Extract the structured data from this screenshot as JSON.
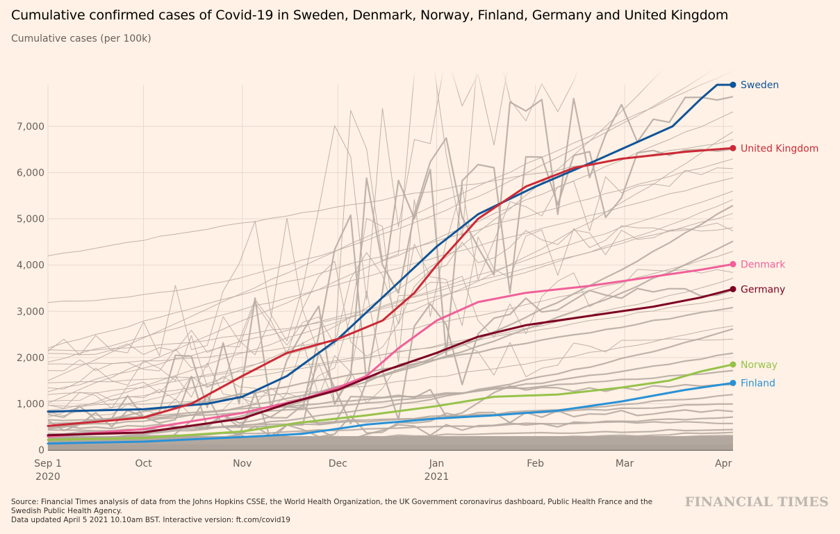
{
  "header": {
    "title": "Cumulative confirmed cases of Covid-19 in Sweden, Denmark, Norway, Finland, Germany and United Kingdom",
    "subtitle": "Cumulative cases (per 100k)"
  },
  "footer": {
    "source_line1": "Source: Financial Times analysis of data from the Johns Hopkins CSSE, the World Health Organization, the UK Government coronavirus dashboard, Public Health France and the",
    "source_line2": "Swedish Public Health Agency.",
    "source_line3": "Data updated April 5 2021 10.10am BST. Interactive version: ft.com/covid19",
    "brand": "FINANCIAL TIMES"
  },
  "colors": {
    "background": "#fff1e5",
    "grid": "#e6d9ce",
    "context_lines": "#b7aca3"
  },
  "chart_data": {
    "type": "line",
    "title": "Cumulative confirmed cases of Covid-19 in Sweden, Denmark, Norway, Finland, Germany and United Kingdom",
    "ylabel": "Cumulative cases (per 100k)",
    "xlabel": "",
    "x_unit": "days since 2020-09-01",
    "xlim": [
      0,
      216
    ],
    "ylim": [
      0,
      8000
    ],
    "grid": true,
    "yticks": [
      {
        "value": 0,
        "label": "0"
      },
      {
        "value": 1000,
        "label": "1,000"
      },
      {
        "value": 2000,
        "label": "2,000"
      },
      {
        "value": 3000,
        "label": "3,000"
      },
      {
        "value": 4000,
        "label": "4,000"
      },
      {
        "value": 5000,
        "label": "5,000"
      },
      {
        "value": 6000,
        "label": "6,000"
      },
      {
        "value": 7000,
        "label": "7,000"
      }
    ],
    "xticks": [
      {
        "day": 0,
        "label": "Sep 1",
        "sublabel": "2020"
      },
      {
        "day": 30,
        "label": "Oct",
        "sublabel": ""
      },
      {
        "day": 61,
        "label": "Nov",
        "sublabel": ""
      },
      {
        "day": 91,
        "label": "Dec",
        "sublabel": ""
      },
      {
        "day": 122,
        "label": "Jan",
        "sublabel": "2021"
      },
      {
        "day": 153,
        "label": "Feb",
        "sublabel": ""
      },
      {
        "day": 181,
        "label": "Mar",
        "sublabel": ""
      },
      {
        "day": 212,
        "label": "Apr",
        "sublabel": ""
      }
    ],
    "legend_placement": "right (direct line-end labels)",
    "series": [
      {
        "name": "Sweden",
        "color": "#0f5499",
        "x": [
          0,
          30,
          50,
          61,
          75,
          91,
          105,
          122,
          135,
          153,
          170,
          183,
          196,
          205,
          210,
          215
        ],
        "y": [
          830,
          880,
          1000,
          1150,
          1600,
          2400,
          3300,
          4400,
          5100,
          5700,
          6200,
          6600,
          7000,
          7600,
          7900,
          7900
        ]
      },
      {
        "name": "United Kingdom",
        "color": "#cc2936",
        "x": [
          0,
          30,
          45,
          61,
          75,
          91,
          105,
          115,
          122,
          135,
          150,
          165,
          180,
          200,
          215
        ],
        "y": [
          520,
          700,
          1000,
          1600,
          2100,
          2400,
          2800,
          3400,
          4000,
          5000,
          5700,
          6100,
          6300,
          6450,
          6530
        ]
      },
      {
        "name": "Denmark",
        "color": "#f0609a",
        "x": [
          0,
          30,
          61,
          80,
          91,
          100,
          110,
          122,
          135,
          150,
          170,
          190,
          205,
          215
        ],
        "y": [
          290,
          450,
          800,
          1100,
          1350,
          1600,
          2200,
          2800,
          3200,
          3400,
          3550,
          3750,
          3900,
          4020
        ]
      },
      {
        "name": "Germany",
        "color": "#7d0023",
        "x": [
          0,
          30,
          61,
          75,
          91,
          105,
          122,
          135,
          150,
          170,
          190,
          205,
          215
        ],
        "y": [
          320,
          380,
          680,
          1000,
          1300,
          1700,
          2100,
          2450,
          2700,
          2900,
          3100,
          3300,
          3480
        ]
      },
      {
        "name": "Norway",
        "color": "#96c24a",
        "x": [
          0,
          30,
          61,
          80,
          100,
          122,
          140,
          160,
          180,
          195,
          205,
          215
        ],
        "y": [
          220,
          260,
          400,
          600,
          750,
          950,
          1150,
          1200,
          1350,
          1500,
          1700,
          1850
        ]
      },
      {
        "name": "Finland",
        "color": "#2891d6",
        "x": [
          0,
          30,
          61,
          80,
          100,
          122,
          140,
          160,
          180,
          200,
          215
        ],
        "y": [
          140,
          180,
          280,
          350,
          550,
          680,
          750,
          850,
          1050,
          1300,
          1450
        ]
      }
    ],
    "context_series_note": "Grey lines: other countries/regions (unlabelled)",
    "context_series": [
      {
        "start": 4200,
        "end": 6700
      },
      {
        "start": 3200,
        "end": 8500
      },
      {
        "start": 2000,
        "end": 9000
      },
      {
        "start": 2200,
        "end": 6300
      },
      {
        "start": 2150,
        "end": 5400
      },
      {
        "start": 2050,
        "end": 4800
      },
      {
        "start": 1900,
        "end": 5900
      },
      {
        "start": 1850,
        "end": 4300
      },
      {
        "start": 1700,
        "end": 4900
      },
      {
        "start": 1500,
        "end": 8200
      },
      {
        "start": 1450,
        "end": 3700
      },
      {
        "start": 1300,
        "end": 9500
      },
      {
        "start": 1250,
        "end": 5100
      },
      {
        "start": 1200,
        "end": 6900
      },
      {
        "start": 1050,
        "end": 3900
      },
      {
        "start": 1000,
        "end": 7300
      },
      {
        "start": 950,
        "end": 2700
      },
      {
        "start": 900,
        "end": 6100
      },
      {
        "start": 850,
        "end": 3300
      },
      {
        "start": 800,
        "end": 9800
      },
      {
        "start": 750,
        "end": 2400
      },
      {
        "start": 700,
        "end": 5600
      },
      {
        "start": 650,
        "end": 2100
      },
      {
        "start": 600,
        "end": 7700
      },
      {
        "start": 560,
        "end": 1700
      },
      {
        "start": 520,
        "end": 4500
      },
      {
        "start": 480,
        "end": 1400
      },
      {
        "start": 450,
        "end": 3100
      },
      {
        "start": 420,
        "end": 1200
      },
      {
        "start": 380,
        "end": 6500
      },
      {
        "start": 350,
        "end": 1000
      },
      {
        "start": 300,
        "end": 2600
      },
      {
        "start": 260,
        "end": 850
      },
      {
        "start": 230,
        "end": 700
      },
      {
        "start": 200,
        "end": 5300
      },
      {
        "start": 180,
        "end": 600
      },
      {
        "start": 150,
        "end": 450
      },
      {
        "start": 120,
        "end": 380
      },
      {
        "start": 100,
        "end": 3500
      },
      {
        "start": 80,
        "end": 300
      },
      {
        "start": 60,
        "end": 220
      },
      {
        "start": 40,
        "end": 160
      },
      {
        "start": 30,
        "end": 120
      },
      {
        "start": 20,
        "end": 80
      },
      {
        "start": 10,
        "end": 40
      }
    ]
  }
}
